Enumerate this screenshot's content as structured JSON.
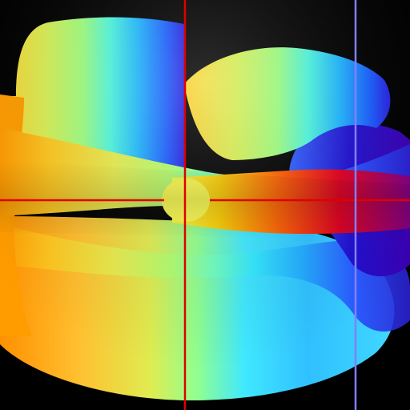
{
  "scene": {
    "background": "#000000",
    "colormap": [
      "#ff8a00",
      "#ffb300",
      "#f5e14a",
      "#d6f25a",
      "#a8ff78",
      "#7dffb0",
      "#40f0ff",
      "#1aa0ff",
      "#2a40ff",
      "#2a10c8",
      "#7a00c0",
      "#ff2000",
      "#ffd000"
    ],
    "crosshair": {
      "color": "#e00000"
    },
    "marker_line": {
      "color": "#8080ff"
    }
  }
}
